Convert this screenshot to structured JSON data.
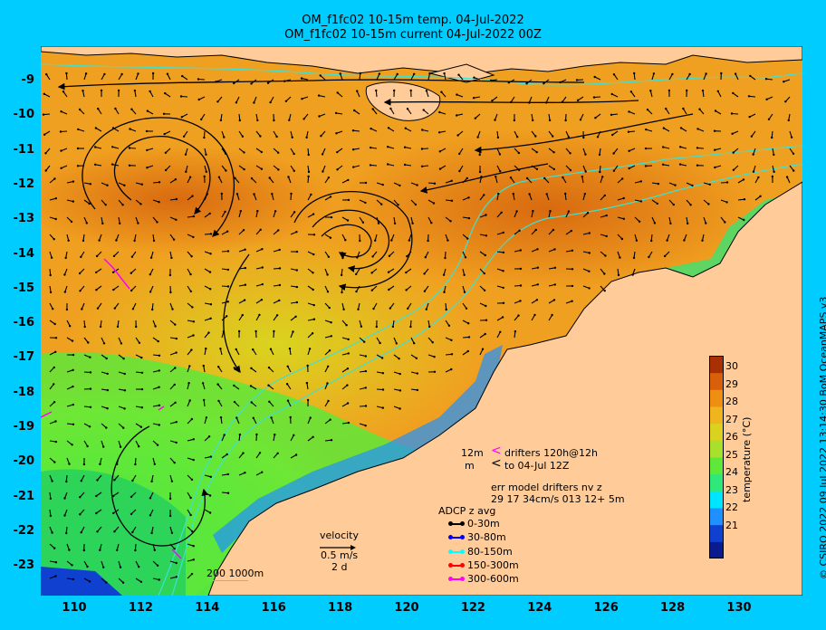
{
  "header": {
    "title_line1": "OM_f1fc02 10-15m temp. 04-Jul-2022",
    "title_line2": "OM_f1fc02 10-15m current 04-Jul-2022 00Z"
  },
  "axes": {
    "y_labels": [
      "-9",
      "-10",
      "-11",
      "-12",
      "-13",
      "-14",
      "-15",
      "-16",
      "-17",
      "-18",
      "-19",
      "-20",
      "-21",
      "-22",
      "-23"
    ],
    "x_labels": [
      "110",
      "112",
      "114",
      "116",
      "118",
      "120",
      "122",
      "124",
      "126",
      "128",
      "130"
    ]
  },
  "legend": {
    "drifter_line1": "12m",
    "drifter_line1_text": "drifters 120h@12h",
    "drifter_line2": "m",
    "drifter_line2_text": "to 04-Jul 12Z",
    "err_line1": "err model drifters nv z",
    "err_line2": "29 17 34cm/s 013 12+ 5m",
    "adcp_title": "ADCP z avg",
    "adcp_items": [
      {
        "label": "0-30m",
        "color": "#000000"
      },
      {
        "label": "30-80m",
        "color": "#0000ff"
      },
      {
        "label": "80-150m",
        "color": "#00ffff"
      },
      {
        "label": "150-300m",
        "color": "#ff0000"
      },
      {
        "label": "300-600m",
        "color": "#ff00ff"
      }
    ],
    "velocity_title": "velocity",
    "velocity_value": "0.5 m/s",
    "velocity_time": "2 d",
    "depth_contours": "200  1000m"
  },
  "colorbar": {
    "title": "temperature (°C)",
    "ticks": [
      "30",
      "29",
      "28",
      "27",
      "26",
      "25",
      "24",
      "23",
      "22",
      "21"
    ],
    "colors": [
      "#0a1a8f",
      "#1040d0",
      "#1e90ff",
      "#00e5ff",
      "#2ee87a",
      "#5ee83a",
      "#a8e12c",
      "#d9d21f",
      "#f0b41c",
      "#ee8f12",
      "#d8600a",
      "#a83005"
    ]
  },
  "credit": "© CSIRO 2022  09 Jul 2022 13:14:30 BoM OceanMAPS v3",
  "map_colors": {
    "land": "#ffcc99",
    "ocean_warm": "#f0a020",
    "ocean_cool": "#58e040",
    "contour": "#40e0d0"
  }
}
